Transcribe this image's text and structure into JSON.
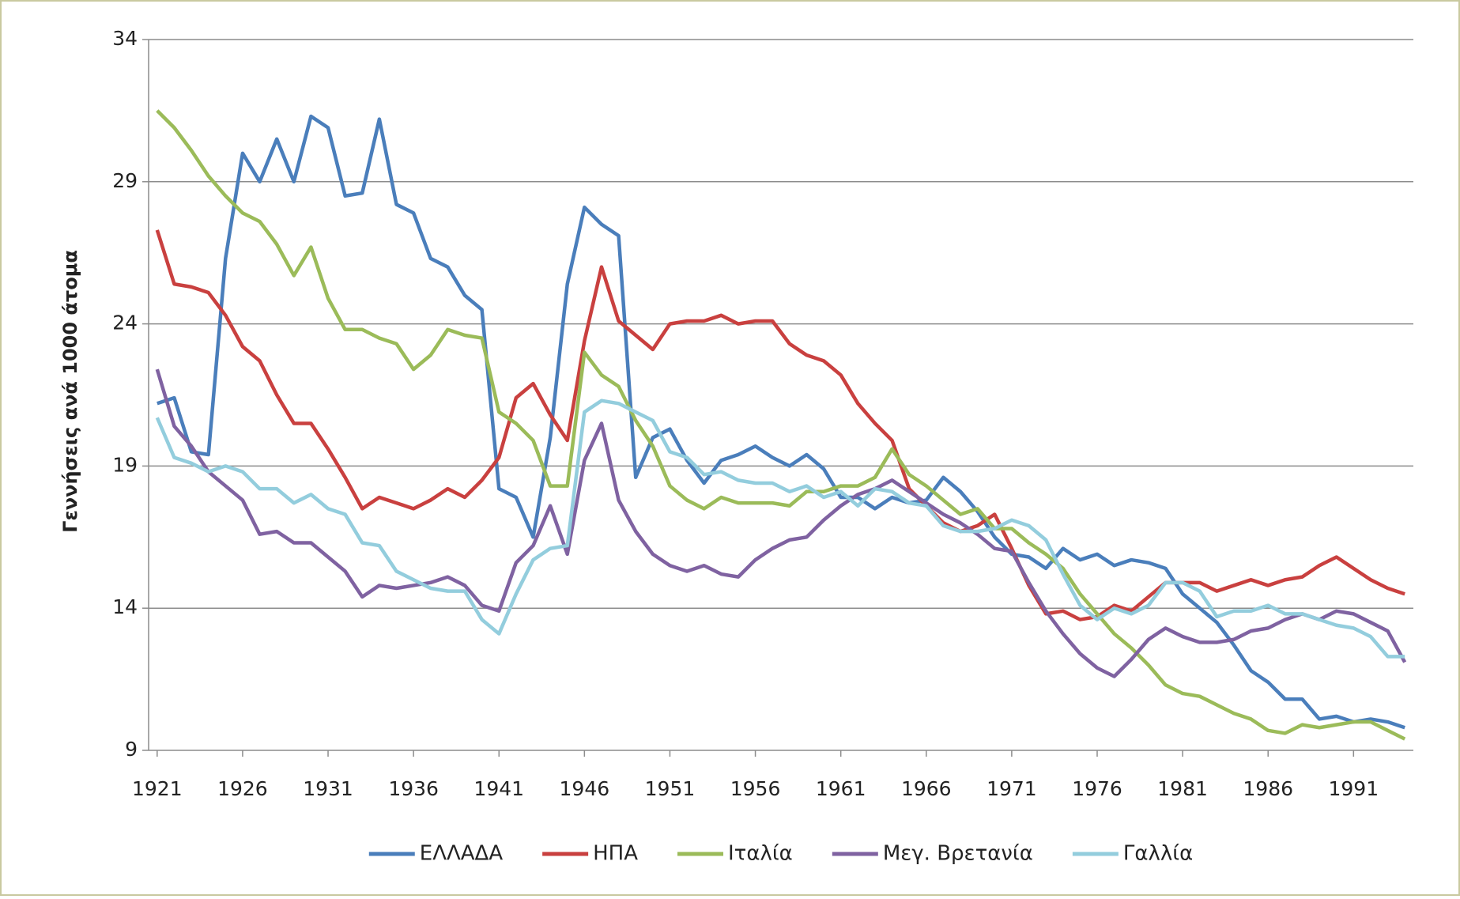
{
  "chart_data": {
    "type": "line",
    "y_label": "Γεννήσεις ανά 1000 άτομα",
    "x": [
      1921,
      1922,
      1923,
      1924,
      1925,
      1926,
      1927,
      1928,
      1929,
      1930,
      1931,
      1932,
      1933,
      1934,
      1935,
      1936,
      1937,
      1938,
      1939,
      1940,
      1941,
      1942,
      1943,
      1944,
      1945,
      1946,
      1947,
      1948,
      1949,
      1950,
      1951,
      1952,
      1953,
      1954,
      1955,
      1956,
      1957,
      1958,
      1959,
      1960,
      1961,
      1962,
      1963,
      1964,
      1965,
      1966,
      1967,
      1968,
      1969,
      1970,
      1971,
      1972,
      1973,
      1974,
      1975,
      1976,
      1977,
      1978,
      1979,
      1980,
      1981,
      1982,
      1983,
      1984,
      1985,
      1986,
      1987,
      1988,
      1989,
      1990,
      1991,
      1992,
      1993,
      1994
    ],
    "xlim": [
      1920.5,
      1994.5
    ],
    "xticks": [
      1921,
      1926,
      1931,
      1936,
      1941,
      1946,
      1951,
      1956,
      1961,
      1966,
      1971,
      1976,
      1981,
      1986,
      1991
    ],
    "ylim": [
      9,
      34
    ],
    "yticks": [
      9,
      14,
      19,
      24,
      29,
      34
    ],
    "grid": true,
    "legend": "bottom",
    "series": [
      {
        "name": "ΕΛΛΑΔΑ",
        "color": "#4a7ebb",
        "values": [
          21.2,
          21.4,
          19.5,
          19.4,
          26.3,
          30.0,
          29.0,
          30.5,
          29.0,
          31.3,
          30.9,
          28.5,
          28.6,
          31.2,
          28.2,
          27.9,
          26.3,
          26.0,
          25.0,
          24.5,
          18.2,
          17.9,
          16.5,
          20.0,
          25.4,
          28.1,
          27.5,
          27.1,
          18.6,
          20.0,
          20.3,
          19.2,
          18.4,
          19.2,
          19.4,
          19.7,
          19.3,
          19.0,
          19.4,
          18.9,
          17.9,
          17.9,
          17.5,
          17.9,
          17.7,
          17.8,
          18.6,
          18.1,
          17.4,
          16.5,
          15.9,
          15.8,
          15.4,
          16.1,
          15.7,
          15.9,
          15.5,
          15.7,
          15.6,
          15.4,
          14.5,
          14.0,
          13.5,
          12.7,
          11.8,
          11.4,
          10.8,
          10.8,
          10.1,
          10.2,
          10.0,
          10.1,
          10.0,
          9.8
        ]
      },
      {
        "name": "ΗΠΑ",
        "color": "#c9403f",
        "values": [
          27.3,
          25.4,
          25.3,
          25.1,
          24.3,
          23.2,
          22.7,
          21.5,
          20.5,
          20.5,
          19.6,
          18.6,
          17.5,
          17.9,
          17.7,
          17.5,
          17.8,
          18.2,
          17.9,
          18.5,
          19.3,
          21.4,
          21.9,
          20.8,
          19.9,
          23.4,
          26.0,
          24.1,
          23.6,
          23.1,
          24.0,
          24.1,
          24.1,
          24.3,
          24.0,
          24.1,
          24.1,
          23.3,
          22.9,
          22.7,
          22.2,
          21.2,
          20.5,
          19.9,
          18.2,
          17.6,
          17.0,
          16.7,
          16.9,
          17.3,
          16.1,
          14.8,
          13.8,
          13.9,
          13.6,
          13.7,
          14.1,
          13.9,
          14.4,
          14.9,
          14.9,
          14.9,
          14.6,
          14.8,
          15.0,
          14.8,
          15.0,
          15.1,
          15.5,
          15.8,
          15.4,
          15.0,
          14.7,
          14.5
        ]
      },
      {
        "name": "Ιταλία",
        "color": "#9bbb59",
        "values": [
          31.5,
          30.9,
          30.1,
          29.2,
          28.5,
          27.9,
          27.6,
          26.8,
          25.7,
          26.7,
          24.9,
          23.8,
          23.8,
          23.5,
          23.3,
          22.4,
          22.9,
          23.8,
          23.6,
          23.5,
          20.9,
          20.5,
          19.9,
          18.3,
          18.3,
          23.0,
          22.2,
          21.8,
          20.6,
          19.7,
          18.3,
          17.8,
          17.5,
          17.9,
          17.7,
          17.7,
          17.7,
          17.6,
          18.1,
          18.1,
          18.3,
          18.3,
          18.6,
          19.6,
          18.7,
          18.3,
          17.8,
          17.3,
          17.5,
          16.8,
          16.8,
          16.3,
          15.9,
          15.4,
          14.5,
          13.8,
          13.1,
          12.6,
          12.0,
          11.3,
          11.0,
          10.9,
          10.6,
          10.3,
          10.1,
          9.7,
          9.6,
          9.9,
          9.8,
          9.9,
          10.0,
          10.0,
          9.7,
          9.4
        ]
      },
      {
        "name": "Μεγ. Βρετανία",
        "color": "#7f62a1",
        "values": [
          22.4,
          20.4,
          19.7,
          18.8,
          18.3,
          17.8,
          16.6,
          16.7,
          16.3,
          16.3,
          15.8,
          15.3,
          14.4,
          14.8,
          14.7,
          14.8,
          14.9,
          15.1,
          14.8,
          14.1,
          13.9,
          15.6,
          16.2,
          17.6,
          15.9,
          19.2,
          20.5,
          17.8,
          16.7,
          15.9,
          15.5,
          15.3,
          15.5,
          15.2,
          15.1,
          15.7,
          16.1,
          16.4,
          16.5,
          17.1,
          17.6,
          18.0,
          18.2,
          18.5,
          18.1,
          17.7,
          17.3,
          17.0,
          16.6,
          16.1,
          16.0,
          14.9,
          13.9,
          13.1,
          12.4,
          11.9,
          11.6,
          12.2,
          12.9,
          13.3,
          13.0,
          12.8,
          12.8,
          12.9,
          13.2,
          13.3,
          13.6,
          13.8,
          13.6,
          13.9,
          13.8,
          13.5,
          13.2,
          12.1
        ]
      },
      {
        "name": "Γαλλία",
        "color": "#93cddd",
        "values": [
          20.7,
          19.3,
          19.1,
          18.8,
          19.0,
          18.8,
          18.2,
          18.2,
          17.7,
          18.0,
          17.5,
          17.3,
          16.3,
          16.2,
          15.3,
          15.0,
          14.7,
          14.6,
          14.6,
          13.6,
          13.1,
          14.5,
          15.7,
          16.1,
          16.2,
          20.9,
          21.3,
          21.2,
          20.9,
          20.6,
          19.5,
          19.3,
          18.7,
          18.8,
          18.5,
          18.4,
          18.4,
          18.1,
          18.3,
          17.9,
          18.1,
          17.6,
          18.2,
          18.1,
          17.7,
          17.6,
          16.9,
          16.7,
          16.7,
          16.8,
          17.1,
          16.9,
          16.4,
          15.2,
          14.1,
          13.6,
          14.0,
          13.8,
          14.1,
          14.9,
          14.9,
          14.6,
          13.7,
          13.9,
          13.9,
          14.1,
          13.8,
          13.8,
          13.6,
          13.4,
          13.3,
          13.0,
          12.3,
          12.3
        ]
      }
    ]
  }
}
